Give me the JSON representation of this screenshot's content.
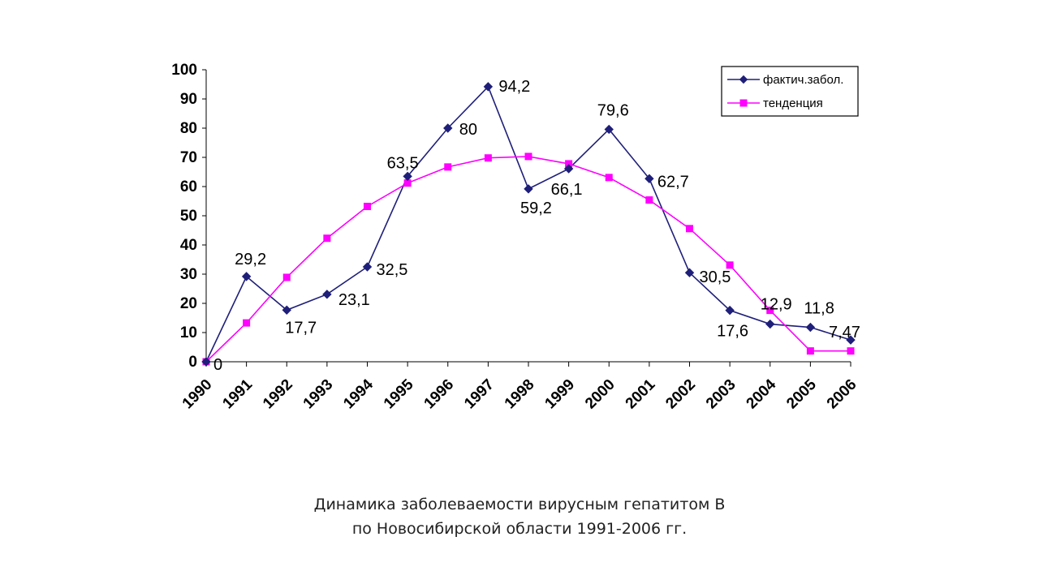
{
  "caption": {
    "line1": "Динамика заболеваемости вирусным гепатитом В",
    "line2": "по Новосибирской области 1991-2006 гг."
  },
  "chart_data": {
    "type": "line",
    "title": "",
    "xlabel": "",
    "ylabel": "",
    "ylim": [
      0,
      100
    ],
    "yticks": [
      0,
      10,
      20,
      30,
      40,
      50,
      60,
      70,
      80,
      90,
      100
    ],
    "categories": [
      "1990",
      "1991",
      "1992",
      "1993",
      "1994",
      "1995",
      "1996",
      "1997",
      "1998",
      "1999",
      "2000",
      "2001",
      "2002",
      "2003",
      "2004",
      "2005",
      "2006"
    ],
    "legend_position": "top-right",
    "series": [
      {
        "name": "фактич.забол.",
        "color": "#1f1f7a",
        "marker": "diamond",
        "values": [
          0,
          29.2,
          17.7,
          23.1,
          32.5,
          63.5,
          80,
          94.2,
          59.2,
          66.1,
          79.6,
          62.7,
          30.5,
          17.6,
          12.9,
          11.8,
          7.47
        ],
        "labels": [
          "0",
          "29,2",
          "17,7",
          "23,1",
          "32,5",
          "63,5",
          "80",
          "94,2",
          "59,2",
          "66,1",
          "79,6",
          "62,7",
          "30,5",
          "17,6",
          "12,9",
          "11,8",
          "7,47"
        ]
      },
      {
        "name": "тенденция",
        "color": "#ff00ff",
        "marker": "square",
        "values": [
          0,
          13.3,
          28.9,
          42.3,
          53.2,
          61.2,
          66.7,
          69.8,
          70.3,
          67.8,
          63.1,
          55.4,
          45.6,
          33.1,
          17.6,
          3.7,
          3.7
        ]
      }
    ]
  }
}
